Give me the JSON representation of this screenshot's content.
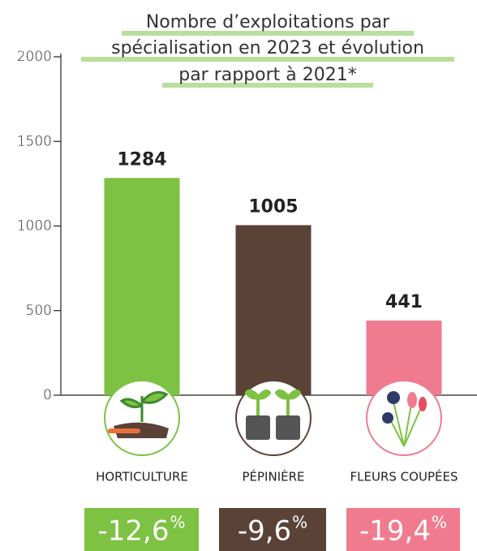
{
  "chart_data": {
    "type": "bar",
    "title": [
      "Nombre d’exploitations par",
      "spécialisation en 2023 et évolution",
      "par rapport à 2021*"
    ],
    "categories": [
      "HORTICULTURE",
      "PÉPINIÈRE",
      "FLEURS COUPÉES"
    ],
    "values": [
      1284,
      1005,
      441
    ],
    "colors": [
      "#7dc242",
      "#5b4237",
      "#f07b8e"
    ],
    "ylim": [
      0,
      2000
    ],
    "yticks": [
      0,
      500,
      1000,
      1500,
      2000
    ],
    "evolution": [
      {
        "value": -12.6,
        "label": "-12,6"
      },
      {
        "value": -9.6,
        "label": "-9,6"
      },
      {
        "value": -19.4,
        "label": "-19,4"
      }
    ],
    "evolution_unit": "%"
  }
}
